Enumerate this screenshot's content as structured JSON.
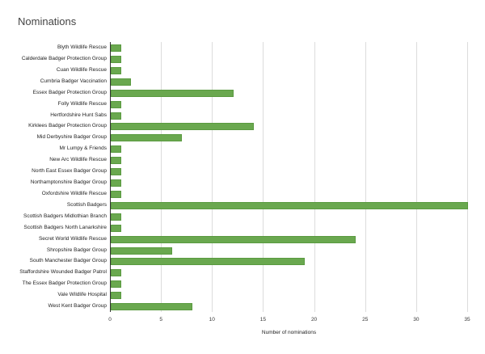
{
  "chart_data": {
    "type": "bar",
    "orientation": "horizontal",
    "title": "Nominations",
    "xlabel": "Number of nominations",
    "ylabel": "",
    "xlim": [
      0,
      35
    ],
    "xticks": [
      0,
      5,
      10,
      15,
      20,
      25,
      30,
      35
    ],
    "grid": true,
    "legend": null,
    "bar_color": "#6aa84f",
    "categories": [
      "Blyth Wildlife Rescue",
      "Calderdale Badger Protection Group",
      "Cuan Wildlife Rescue",
      "Cumbria Badger Vaccination",
      "Essex Badger Protection Group",
      "Folly Wildlife Rescue",
      "Hertfordshire Hunt Sabs",
      "Kirklees Badger Protection Group",
      "Mid Derbyshire Badger Group",
      "Mr Lumpy & Friends",
      "New Arc Wildlife Rescue",
      "North East Essex Badger Group",
      "Northamptonshire Badger Group",
      "Oxfordshire Wildlife Rescue",
      "Scottish Badgers",
      "Scottish Badgers Midlothian Branch",
      "Scottish Badgers North Lanarkshire",
      "Secret World Wildlife Rescue",
      "Shropshire Badger Group",
      "South Manchester Badger Group",
      "Staffordshire Wounded Badger Patrol",
      "The Essex Badger Protection Group",
      "Vale Wildlife Hospital",
      "West Kent Badger Group"
    ],
    "values": [
      1,
      1,
      1,
      2,
      12,
      1,
      1,
      14,
      7,
      1,
      1,
      1,
      1,
      1,
      35,
      1,
      1,
      24,
      6,
      19,
      1,
      1,
      1,
      8
    ]
  }
}
